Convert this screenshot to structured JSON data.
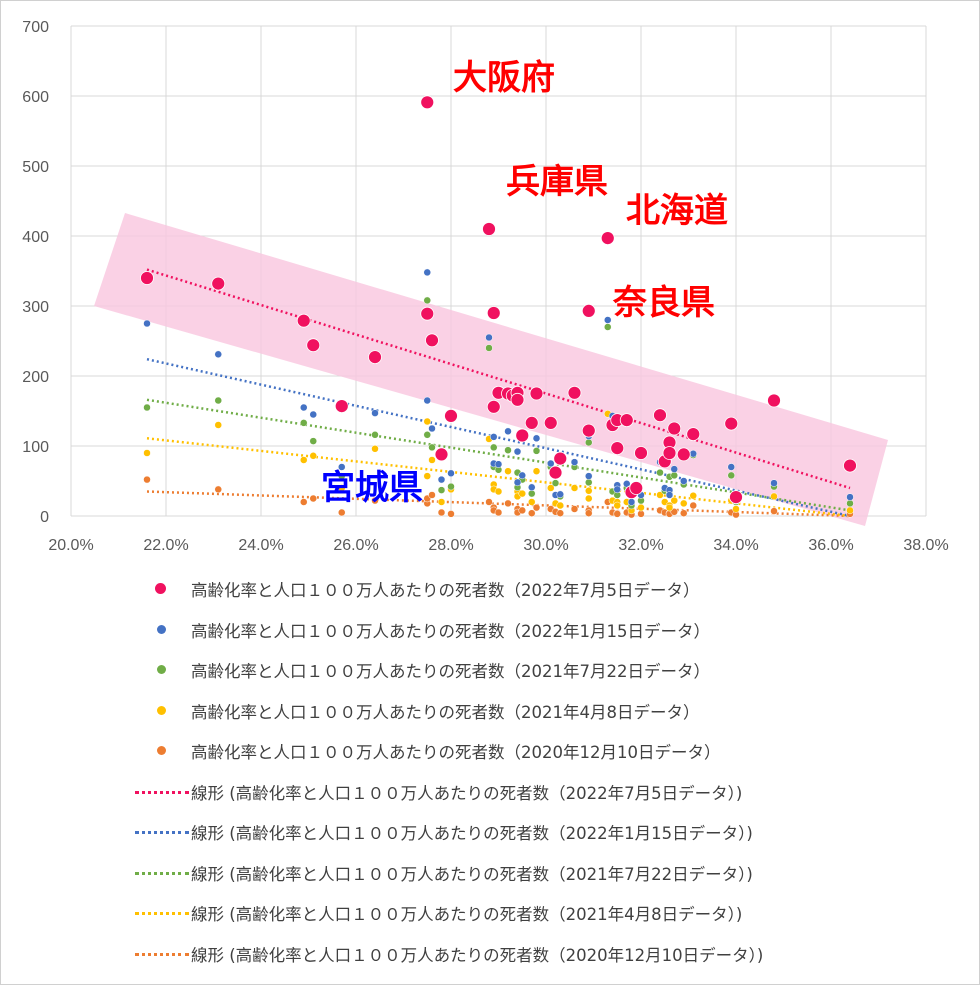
{
  "chart_data": {
    "type": "scatter",
    "xlim": [
      0.2,
      0.38
    ],
    "ylim": [
      0,
      700
    ],
    "x_ticks": [
      "20.0%",
      "22.0%",
      "24.0%",
      "26.0%",
      "28.0%",
      "30.0%",
      "32.0%",
      "34.0%",
      "36.0%",
      "38.0%"
    ],
    "y_ticks": [
      "0",
      "100",
      "200",
      "300",
      "400",
      "500",
      "600",
      "700"
    ],
    "grid": true,
    "legend_position": "bottom",
    "annotations": [
      {
        "text": "大阪府",
        "color": "#ff0000"
      },
      {
        "text": "兵庫県",
        "color": "#ff0000"
      },
      {
        "text": "北海道",
        "color": "#ff0000"
      },
      {
        "text": "奈良県",
        "color": "#ff0000"
      },
      {
        "text": "宮城県",
        "color": "#0000ff"
      }
    ],
    "series": [
      {
        "name": "高齢化率と人口１００万人あたりの死者数（2022年7月5日データ）",
        "color": "#f0115f",
        "trend_name": "線形 (高齢化率と人口１００万人あたりの死者数（2022年7月5日データ）)",
        "trend": [
          [
            0.216,
            352
          ],
          [
            0.364,
            40
          ]
        ],
        "points": [
          [
            0.216,
            340
          ],
          [
            0.231,
            332
          ],
          [
            0.249,
            279
          ],
          [
            0.251,
            244
          ],
          [
            0.257,
            157
          ],
          [
            0.264,
            227
          ],
          [
            0.275,
            591
          ],
          [
            0.275,
            289
          ],
          [
            0.276,
            251
          ],
          [
            0.278,
            88
          ],
          [
            0.28,
            143
          ],
          [
            0.288,
            410
          ],
          [
            0.289,
            290
          ],
          [
            0.289,
            156
          ],
          [
            0.29,
            176
          ],
          [
            0.292,
            175
          ],
          [
            0.293,
            172
          ],
          [
            0.294,
            176
          ],
          [
            0.294,
            166
          ],
          [
            0.295,
            115
          ],
          [
            0.297,
            133
          ],
          [
            0.298,
            175
          ],
          [
            0.301,
            133
          ],
          [
            0.302,
            62
          ],
          [
            0.303,
            82
          ],
          [
            0.306,
            176
          ],
          [
            0.309,
            293
          ],
          [
            0.309,
            122
          ],
          [
            0.313,
            397
          ],
          [
            0.314,
            130
          ],
          [
            0.315,
            137
          ],
          [
            0.315,
            97
          ],
          [
            0.317,
            137
          ],
          [
            0.318,
            34
          ],
          [
            0.319,
            40
          ],
          [
            0.32,
            90
          ],
          [
            0.324,
            144
          ],
          [
            0.325,
            78
          ],
          [
            0.326,
            105
          ],
          [
            0.326,
            90
          ],
          [
            0.327,
            125
          ],
          [
            0.329,
            88
          ],
          [
            0.331,
            117
          ],
          [
            0.339,
            132
          ],
          [
            0.34,
            27
          ],
          [
            0.348,
            165
          ],
          [
            0.364,
            72
          ]
        ]
      },
      {
        "name": "高齢化率と人口１００万人あたりの死者数（2022年1月15日データ）",
        "color": "#4472c4",
        "trend_name": "線形 (高齢化率と人口１００万人あたりの死者数（2022年1月15日データ）)",
        "trend": [
          [
            0.216,
            224
          ],
          [
            0.364,
            0
          ]
        ],
        "points": [
          [
            0.216,
            275
          ],
          [
            0.231,
            231
          ],
          [
            0.249,
            155
          ],
          [
            0.251,
            145
          ],
          [
            0.257,
            70
          ],
          [
            0.264,
            147
          ],
          [
            0.275,
            348
          ],
          [
            0.275,
            165
          ],
          [
            0.276,
            125
          ],
          [
            0.278,
            52
          ],
          [
            0.28,
            61
          ],
          [
            0.288,
            255
          ],
          [
            0.289,
            113
          ],
          [
            0.289,
            75
          ],
          [
            0.29,
            74
          ],
          [
            0.292,
            121
          ],
          [
            0.294,
            92
          ],
          [
            0.294,
            48
          ],
          [
            0.295,
            58
          ],
          [
            0.297,
            41
          ],
          [
            0.298,
            111
          ],
          [
            0.301,
            75
          ],
          [
            0.302,
            30
          ],
          [
            0.303,
            31
          ],
          [
            0.306,
            77
          ],
          [
            0.309,
            114
          ],
          [
            0.309,
            57
          ],
          [
            0.313,
            280
          ],
          [
            0.314,
            143
          ],
          [
            0.315,
            44
          ],
          [
            0.315,
            38
          ],
          [
            0.317,
            46
          ],
          [
            0.318,
            20
          ],
          [
            0.32,
            30
          ],
          [
            0.324,
            77
          ],
          [
            0.325,
            40
          ],
          [
            0.326,
            37
          ],
          [
            0.326,
            30
          ],
          [
            0.327,
            67
          ],
          [
            0.329,
            50
          ],
          [
            0.331,
            89
          ],
          [
            0.339,
            70
          ],
          [
            0.34,
            22
          ],
          [
            0.348,
            47
          ],
          [
            0.364,
            27
          ]
        ]
      },
      {
        "name": "高齢化率と人口１００万人あたりの死者数（2021年7月22日データ）",
        "color": "#70ad47",
        "trend_name": "線形 (高齢化率と人口１００万人あたりの死者数（2021年7月22日データ）)",
        "trend": [
          [
            0.216,
            166
          ],
          [
            0.364,
            8
          ]
        ],
        "points": [
          [
            0.216,
            155
          ],
          [
            0.231,
            165
          ],
          [
            0.249,
            133
          ],
          [
            0.251,
            107
          ],
          [
            0.257,
            57
          ],
          [
            0.264,
            116
          ],
          [
            0.275,
            308
          ],
          [
            0.275,
            116
          ],
          [
            0.276,
            98
          ],
          [
            0.278,
            37
          ],
          [
            0.28,
            42
          ],
          [
            0.288,
            240
          ],
          [
            0.289,
            98
          ],
          [
            0.289,
            70
          ],
          [
            0.29,
            66
          ],
          [
            0.292,
            94
          ],
          [
            0.294,
            62
          ],
          [
            0.294,
            41
          ],
          [
            0.295,
            52
          ],
          [
            0.297,
            32
          ],
          [
            0.298,
            93
          ],
          [
            0.301,
            70
          ],
          [
            0.302,
            47
          ],
          [
            0.303,
            28
          ],
          [
            0.306,
            70
          ],
          [
            0.309,
            105
          ],
          [
            0.309,
            48
          ],
          [
            0.313,
            270
          ],
          [
            0.314,
            35
          ],
          [
            0.315,
            38
          ],
          [
            0.315,
            30
          ],
          [
            0.317,
            40
          ],
          [
            0.318,
            15
          ],
          [
            0.32,
            22
          ],
          [
            0.324,
            62
          ],
          [
            0.325,
            36
          ],
          [
            0.326,
            32
          ],
          [
            0.326,
            56
          ],
          [
            0.327,
            58
          ],
          [
            0.329,
            45
          ],
          [
            0.331,
            87
          ],
          [
            0.339,
            58
          ],
          [
            0.34,
            20
          ],
          [
            0.348,
            42
          ],
          [
            0.364,
            18
          ]
        ]
      },
      {
        "name": "高齢化率と人口１００万人あたりの死者数（2021年4月8日データ）",
        "color": "#ffc000",
        "trend_name": "線形 (高齢化率と人口１００万人あたりの死者数（2021年4月8日データ）)",
        "trend": [
          [
            0.216,
            111
          ],
          [
            0.364,
            0
          ]
        ],
        "points": [
          [
            0.216,
            90
          ],
          [
            0.231,
            130
          ],
          [
            0.249,
            80
          ],
          [
            0.251,
            86
          ],
          [
            0.257,
            40
          ],
          [
            0.264,
            96
          ],
          [
            0.275,
            135
          ],
          [
            0.275,
            57
          ],
          [
            0.276,
            80
          ],
          [
            0.278,
            20
          ],
          [
            0.28,
            38
          ],
          [
            0.288,
            110
          ],
          [
            0.289,
            45
          ],
          [
            0.289,
            38
          ],
          [
            0.29,
            35
          ],
          [
            0.292,
            64
          ],
          [
            0.294,
            35
          ],
          [
            0.294,
            28
          ],
          [
            0.295,
            32
          ],
          [
            0.297,
            20
          ],
          [
            0.298,
            64
          ],
          [
            0.301,
            40
          ],
          [
            0.302,
            18
          ],
          [
            0.303,
            15
          ],
          [
            0.306,
            40
          ],
          [
            0.309,
            36
          ],
          [
            0.309,
            25
          ],
          [
            0.313,
            146
          ],
          [
            0.314,
            22
          ],
          [
            0.315,
            20
          ],
          [
            0.315,
            15
          ],
          [
            0.317,
            20
          ],
          [
            0.318,
            8
          ],
          [
            0.32,
            12
          ],
          [
            0.324,
            30
          ],
          [
            0.325,
            20
          ],
          [
            0.326,
            15
          ],
          [
            0.326,
            12
          ],
          [
            0.327,
            22
          ],
          [
            0.329,
            18
          ],
          [
            0.331,
            29
          ],
          [
            0.339,
            22
          ],
          [
            0.34,
            10
          ],
          [
            0.348,
            28
          ],
          [
            0.364,
            8
          ]
        ]
      },
      {
        "name": "高齢化率と人口１００万人あたりの死者数（2020年12月10日データ）",
        "color": "#ed7d31",
        "trend_name": "線形 (高齢化率と人口１００万人あたりの死者数（2020年12月10日データ）)",
        "trend": [
          [
            0.216,
            35
          ],
          [
            0.364,
            0
          ]
        ],
        "points": [
          [
            0.216,
            52
          ],
          [
            0.231,
            38
          ],
          [
            0.249,
            20
          ],
          [
            0.251,
            25
          ],
          [
            0.257,
            5
          ],
          [
            0.264,
            22
          ],
          [
            0.275,
            18
          ],
          [
            0.275,
            25
          ],
          [
            0.276,
            30
          ],
          [
            0.278,
            5
          ],
          [
            0.28,
            3
          ],
          [
            0.288,
            20
          ],
          [
            0.289,
            12
          ],
          [
            0.289,
            8
          ],
          [
            0.29,
            5
          ],
          [
            0.292,
            18
          ],
          [
            0.294,
            10
          ],
          [
            0.294,
            5
          ],
          [
            0.295,
            8
          ],
          [
            0.297,
            4
          ],
          [
            0.298,
            12
          ],
          [
            0.301,
            10
          ],
          [
            0.302,
            6
          ],
          [
            0.303,
            4
          ],
          [
            0.306,
            10
          ],
          [
            0.309,
            8
          ],
          [
            0.309,
            4
          ],
          [
            0.313,
            20
          ],
          [
            0.314,
            5
          ],
          [
            0.315,
            4
          ],
          [
            0.315,
            3
          ],
          [
            0.317,
            5
          ],
          [
            0.318,
            2
          ],
          [
            0.32,
            3
          ],
          [
            0.324,
            8
          ],
          [
            0.325,
            5
          ],
          [
            0.326,
            4
          ],
          [
            0.326,
            3
          ],
          [
            0.327,
            6
          ],
          [
            0.329,
            4
          ],
          [
            0.331,
            15
          ],
          [
            0.339,
            5
          ],
          [
            0.34,
            2
          ],
          [
            0.348,
            7
          ],
          [
            0.364,
            3
          ]
        ]
      }
    ]
  }
}
